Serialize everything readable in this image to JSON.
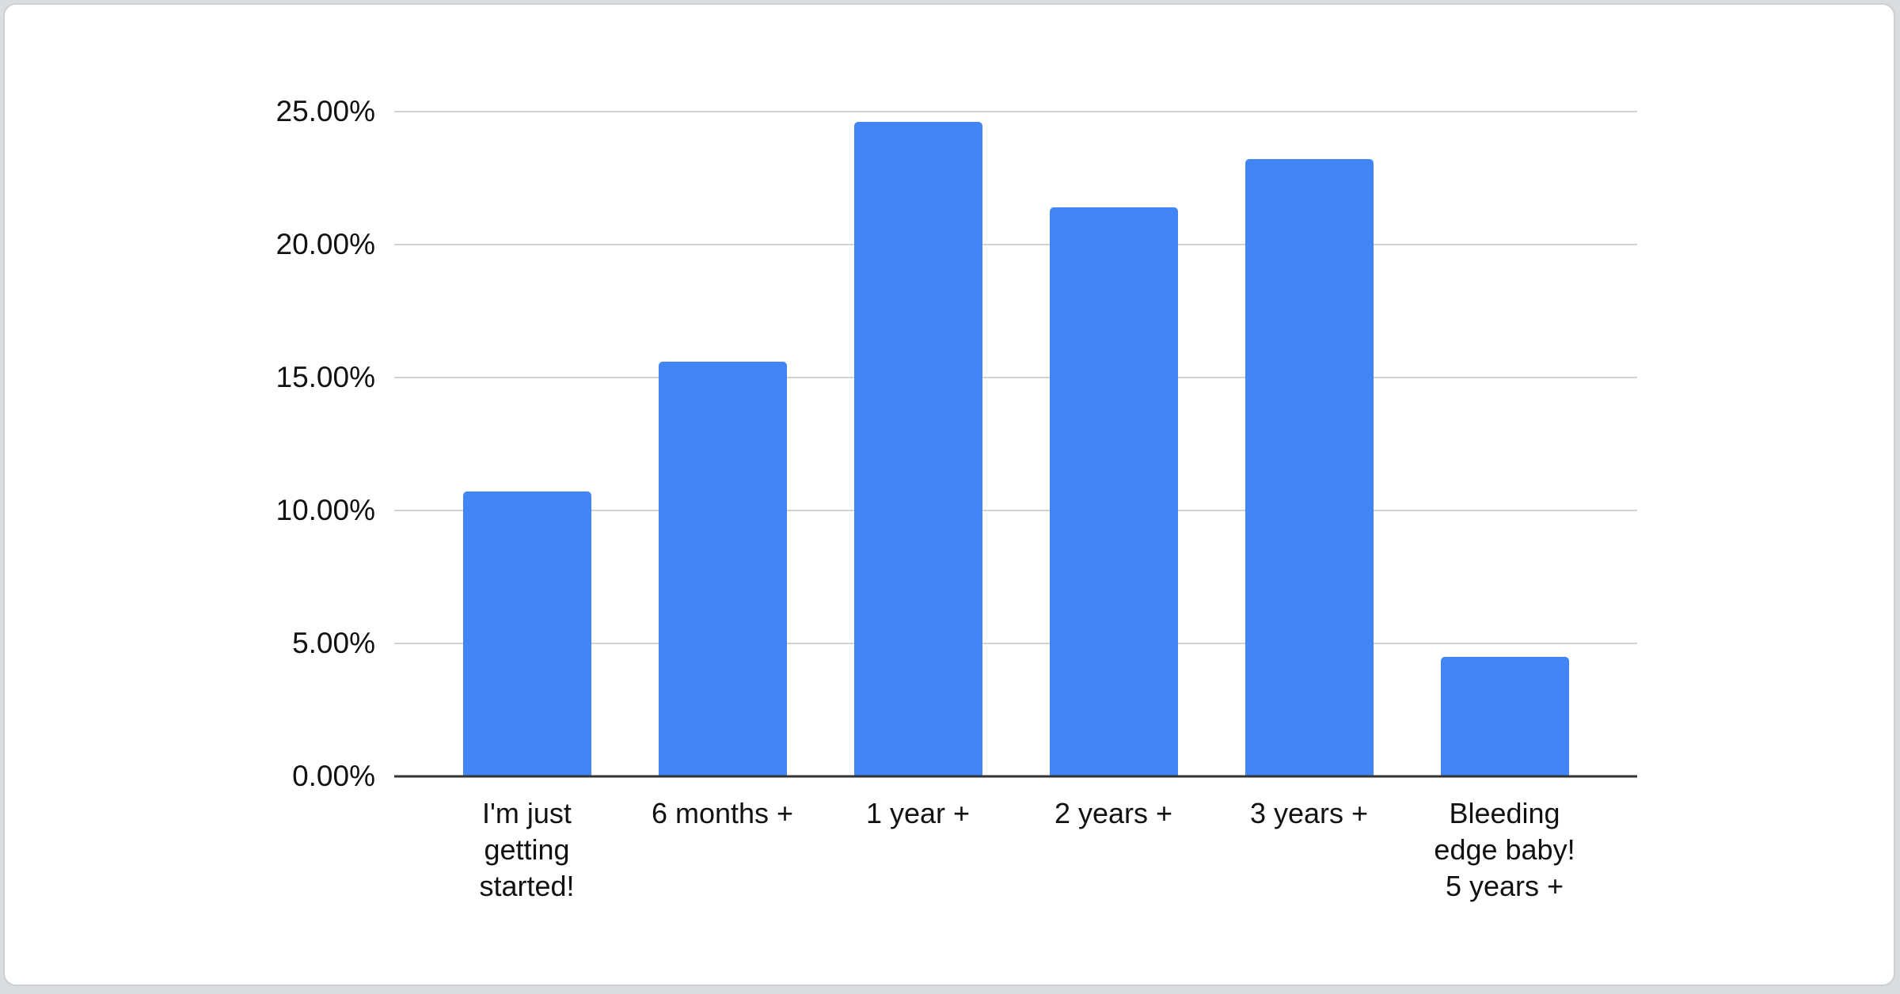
{
  "chart_data": {
    "type": "bar",
    "categories": [
      "I'm just\ngetting\nstarted!",
      "6 months +",
      "1 year +",
      "2 years +",
      "3 years +",
      "Bleeding\nedge baby!\n5 years +"
    ],
    "values": [
      10.7,
      15.6,
      24.6,
      21.4,
      23.2,
      4.5
    ],
    "value_unit": "percent",
    "y_ticks": [
      "0.00%",
      "5.00%",
      "10.00%",
      "15.00%",
      "20.00%",
      "25.00%"
    ],
    "y_tick_values": [
      0,
      5,
      10,
      15,
      20,
      25
    ],
    "ylim": [
      0,
      25
    ],
    "xlabel": "",
    "ylabel": "",
    "grid": true,
    "legend": "none",
    "colors": {
      "bar": "#4285F4",
      "gridline": "#d4d4d4",
      "axis_line": "#333333",
      "label": "#111111",
      "card_background": "#ffffff",
      "page_background": "#d9dde0"
    }
  }
}
